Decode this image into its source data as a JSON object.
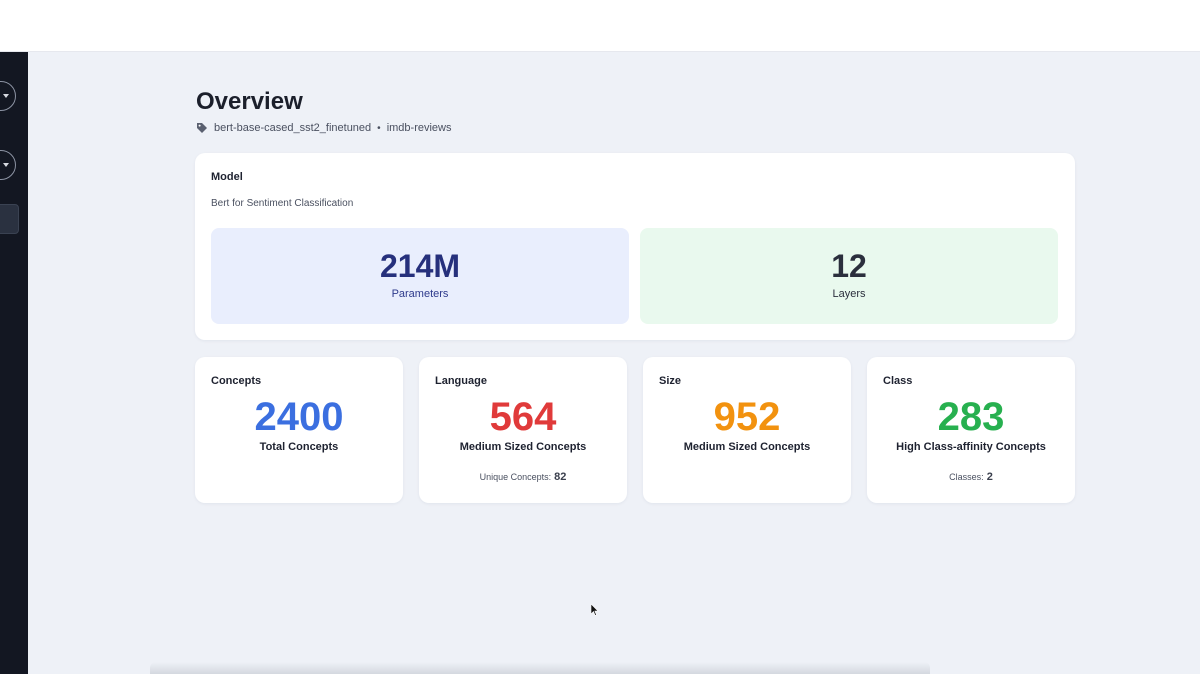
{
  "page": {
    "title": "Overview",
    "model_tag": "bert-base-cased_sst2_finetuned",
    "separator": "•",
    "dataset_tag": "imdb-reviews"
  },
  "model_card": {
    "label": "Model",
    "name": "Bert for Sentiment Classification",
    "parameters": {
      "value": "214M",
      "caption": "Parameters"
    },
    "layers": {
      "value": "12",
      "caption": "Layers"
    }
  },
  "stats": [
    {
      "label": "Concepts",
      "value": "2400",
      "caption": "Total Concepts",
      "color": "#3b6fe0"
    },
    {
      "label": "Language",
      "value": "564",
      "caption": "Medium Sized Concepts",
      "color": "#e03a3a",
      "footer_label": "Unique Concepts:",
      "footer_value": "82"
    },
    {
      "label": "Size",
      "value": "952",
      "caption": "Medium Sized Concepts",
      "color": "#f2920f"
    },
    {
      "label": "Class",
      "value": "283",
      "caption": "High Class-affinity Concepts",
      "color": "#27b04f",
      "footer_label": "Classes:",
      "footer_value": "2"
    }
  ],
  "icons": {
    "tag": "tag-icon",
    "sidebar_toggle": "chevron-down-icon",
    "cursor": "mouse-cursor-icon"
  }
}
